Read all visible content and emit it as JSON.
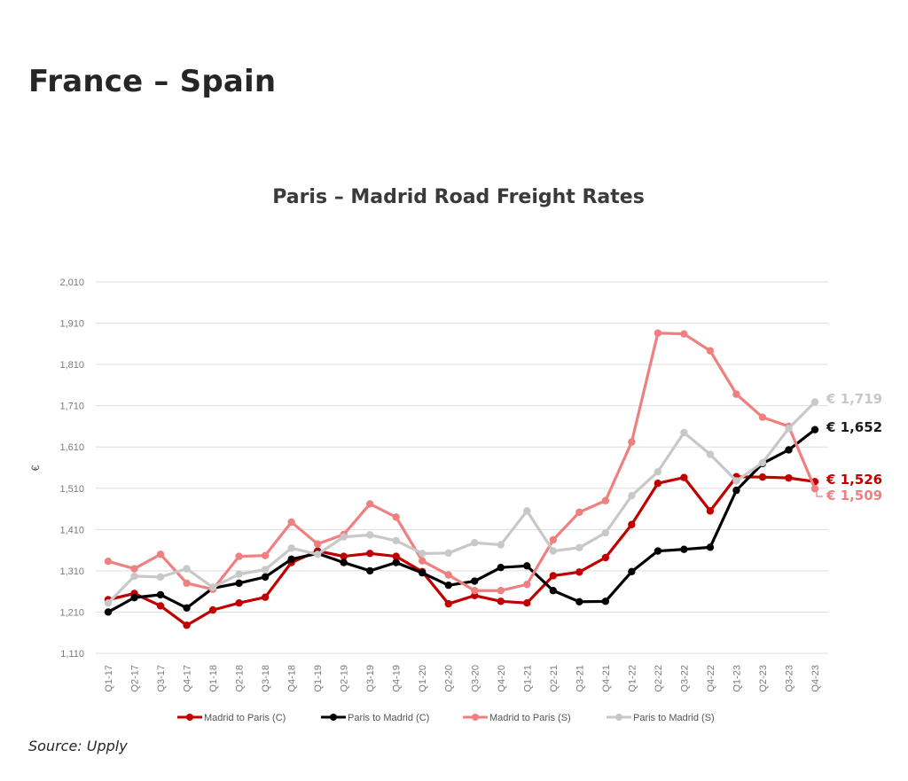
{
  "page": {
    "heading": "France – Spain",
    "source": "Source: Upply"
  },
  "chart_data": {
    "type": "line",
    "title": "Paris – Madrid Road Freight Rates",
    "xlabel": "",
    "ylabel": "€",
    "ylim": [
      1110,
      2010
    ],
    "yticks": [
      "2,010",
      "1,910",
      "1,810",
      "1,710",
      "1,610",
      "1,510",
      "1,410",
      "1,310",
      "1,210",
      "1,110"
    ],
    "grid": true,
    "legend_position": "bottom",
    "categories": [
      "Q1-17",
      "Q2-17",
      "Q3-17",
      "Q4-17",
      "Q1-18",
      "Q2-18",
      "Q3-18",
      "Q4-18",
      "Q1-19",
      "Q2-19",
      "Q3-19",
      "Q4-19",
      "Q1-20",
      "Q2-20",
      "Q3-20",
      "Q4-20",
      "Q1-21",
      "Q2-21",
      "Q3-21",
      "Q4-21",
      "Q1-22",
      "Q2-22",
      "Q3-22",
      "Q4-22",
      "Q1-23",
      "Q2-23",
      "Q3-23",
      "Q4-23"
    ],
    "series": [
      {
        "name": "Madrid to Paris (C)",
        "color": "#c00000",
        "values": [
          1240,
          1255,
          1225,
          1178,
          1215,
          1232,
          1246,
          1330,
          1358,
          1345,
          1352,
          1345,
          1308,
          1230,
          1250,
          1236,
          1232,
          1298,
          1307,
          1342,
          1422,
          1522,
          1536,
          1455,
          1538,
          1537,
          1535,
          1526
        ]
      },
      {
        "name": "Paris to Madrid (C)",
        "color": "#000000",
        "values": [
          1210,
          1245,
          1252,
          1220,
          1268,
          1280,
          1295,
          1338,
          1352,
          1330,
          1310,
          1330,
          1305,
          1275,
          1285,
          1318,
          1322,
          1262,
          1235,
          1236,
          1308,
          1358,
          1362,
          1367,
          1505,
          1570,
          1603,
          1652
        ]
      },
      {
        "name": "Madrid to Paris (S)",
        "color": "#f08080",
        "values": [
          1333,
          1315,
          1350,
          1280,
          1265,
          1345,
          1347,
          1428,
          1375,
          1398,
          1472,
          1440,
          1334,
          1300,
          1262,
          1262,
          1277,
          1385,
          1452,
          1480,
          1622,
          1886,
          1884,
          1843,
          1738,
          1682,
          1660,
          1509
        ]
      },
      {
        "name": "Paris to Madrid (S)",
        "color": "#c8c8c8",
        "values": [
          1232,
          1297,
          1295,
          1315,
          1270,
          1302,
          1313,
          1365,
          1350,
          1392,
          1397,
          1383,
          1352,
          1353,
          1378,
          1373,
          1455,
          1358,
          1366,
          1402,
          1492,
          1550,
          1645,
          1592,
          1528,
          1572,
          1655,
          1719
        ]
      }
    ],
    "end_labels": [
      {
        "text": "€ 1,719",
        "color": "#c8c8c8",
        "value": 1719
      },
      {
        "text": "€ 1,652",
        "color": "#1a1a1a",
        "value": 1652
      },
      {
        "text": "€ 1,526",
        "color": "#c00000",
        "value": 1526
      },
      {
        "text": "€ 1,509",
        "color": "#f08080",
        "value": 1509
      }
    ]
  }
}
